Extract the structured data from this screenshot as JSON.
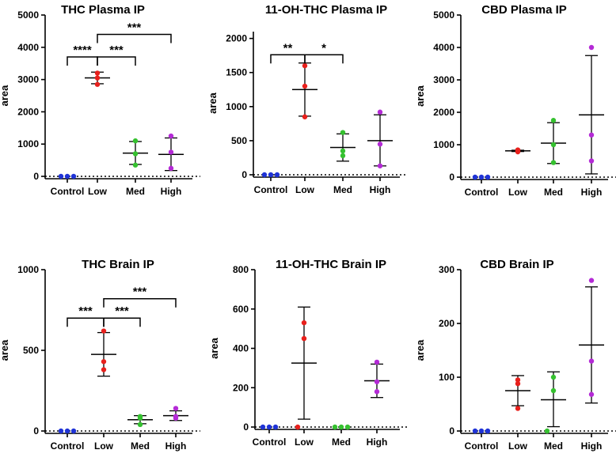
{
  "figure": {
    "group_colors": [
      "#1f33d6",
      "#e8201c",
      "#35c12f",
      "#b42ad6"
    ]
  },
  "chart_data": [
    {
      "type": "scatter",
      "title": "THC Plasma IP",
      "xlabel": "",
      "ylabel": "area",
      "ylim": [
        0,
        5000
      ],
      "yticks": [
        0,
        1000,
        2000,
        3000,
        4000,
        5000
      ],
      "categories": [
        "Control",
        "Low",
        "Med",
        "High"
      ],
      "points": [
        [
          0,
          0,
          0
        ],
        [
          2850,
          3050,
          3200
        ],
        [
          350,
          700,
          1100
        ],
        [
          250,
          750,
          1250
        ]
      ],
      "mean": [
        0,
        3050,
        720,
        680
      ],
      "sd_low": [
        0,
        2870,
        370,
        180
      ],
      "sd_high": [
        0,
        3230,
        1080,
        1190
      ],
      "significance": [
        {
          "from": 0,
          "to": 1,
          "label": "****",
          "y": 3700
        },
        {
          "from": 1,
          "to": 2,
          "label": "***",
          "y": 3700
        },
        {
          "from": 1,
          "to": 3,
          "label": "***",
          "y": 4400
        }
      ]
    },
    {
      "type": "scatter",
      "title": "11-OH-THC  Plasma IP",
      "xlabel": "",
      "ylabel": "area",
      "ylim": [
        0,
        2100
      ],
      "yticks": [
        0,
        500,
        1000,
        1500,
        2000
      ],
      "categories": [
        "Control",
        "Low",
        "Med",
        "High"
      ],
      "points": [
        [
          0,
          0,
          0
        ],
        [
          850,
          1300,
          1600
        ],
        [
          280,
          350,
          620
        ],
        [
          130,
          450,
          920
        ]
      ],
      "mean": [
        0,
        1250,
        400,
        500
      ],
      "sd_low": [
        0,
        860,
        200,
        130
      ],
      "sd_high": [
        0,
        1640,
        600,
        880
      ],
      "significance": [
        {
          "from": 0,
          "to": 1,
          "label": "**",
          "y": 1760
        },
        {
          "from": 1,
          "to": 2,
          "label": "*",
          "y": 1760
        }
      ]
    },
    {
      "type": "scatter",
      "title": "CBD Plasma  IP",
      "xlabel": "",
      "ylabel": "area",
      "ylim": [
        0,
        5000
      ],
      "yticks": [
        0,
        1000,
        2000,
        3000,
        4000,
        5000
      ],
      "categories": [
        "Control",
        "Low",
        "Med",
        "High"
      ],
      "points": [
        [
          0,
          0,
          0
        ],
        [
          780,
          810,
          840
        ],
        [
          450,
          1000,
          1750
        ],
        [
          500,
          1300,
          4000
        ]
      ],
      "mean": [
        0,
        810,
        1050,
        1920
      ],
      "sd_low": [
        0,
        790,
        420,
        100
      ],
      "sd_high": [
        0,
        830,
        1680,
        3750
      ],
      "significance": []
    },
    {
      "type": "scatter",
      "title": "THC Brain IP",
      "xlabel": "",
      "ylabel": "area",
      "ylim": [
        0,
        1000
      ],
      "yticks": [
        0,
        500,
        1000
      ],
      "categories": [
        "Control",
        "Low",
        "Med",
        "High"
      ],
      "points": [
        [
          0,
          0,
          0
        ],
        [
          380,
          430,
          620
        ],
        [
          40,
          80,
          90
        ],
        [
          80,
          90,
          140
        ]
      ],
      "mean": [
        0,
        475,
        70,
        95
      ],
      "sd_low": [
        0,
        340,
        45,
        65
      ],
      "sd_high": [
        0,
        610,
        95,
        125
      ],
      "significance": [
        {
          "from": 0,
          "to": 1,
          "label": "***",
          "y": 700
        },
        {
          "from": 1,
          "to": 2,
          "label": "***",
          "y": 700
        },
        {
          "from": 1,
          "to": 3,
          "label": "***",
          "y": 820
        }
      ]
    },
    {
      "type": "scatter",
      "title": "11-OH-THC Brain IP",
      "xlabel": "",
      "ylabel": "area",
      "ylim": [
        0,
        800
      ],
      "yticks": [
        0,
        200,
        400,
        600,
        800
      ],
      "categories": [
        "Control",
        "Low",
        "Med",
        "High"
      ],
      "points": [
        [
          0,
          0,
          0
        ],
        [
          0,
          450,
          530
        ],
        [
          0,
          0,
          0
        ],
        [
          180,
          230,
          330
        ]
      ],
      "mean": [
        0,
        325,
        0,
        235
      ],
      "sd_low": [
        0,
        40,
        0,
        150
      ],
      "sd_high": [
        0,
        610,
        0,
        320
      ],
      "significance": []
    },
    {
      "type": "scatter",
      "title": "CBD Brain IP",
      "xlabel": "",
      "ylabel": "area",
      "ylim": [
        0,
        300
      ],
      "yticks": [
        0,
        100,
        200,
        300
      ],
      "categories": [
        "Control",
        "Low",
        "Med",
        "High"
      ],
      "points": [
        [
          0,
          0,
          0
        ],
        [
          42,
          88,
          95
        ],
        [
          0,
          75,
          100
        ],
        [
          68,
          130,
          280
        ]
      ],
      "mean": [
        0,
        75,
        58,
        160
      ],
      "sd_low": [
        0,
        47,
        8,
        52
      ],
      "sd_high": [
        0,
        103,
        110,
        268
      ],
      "significance": []
    }
  ]
}
